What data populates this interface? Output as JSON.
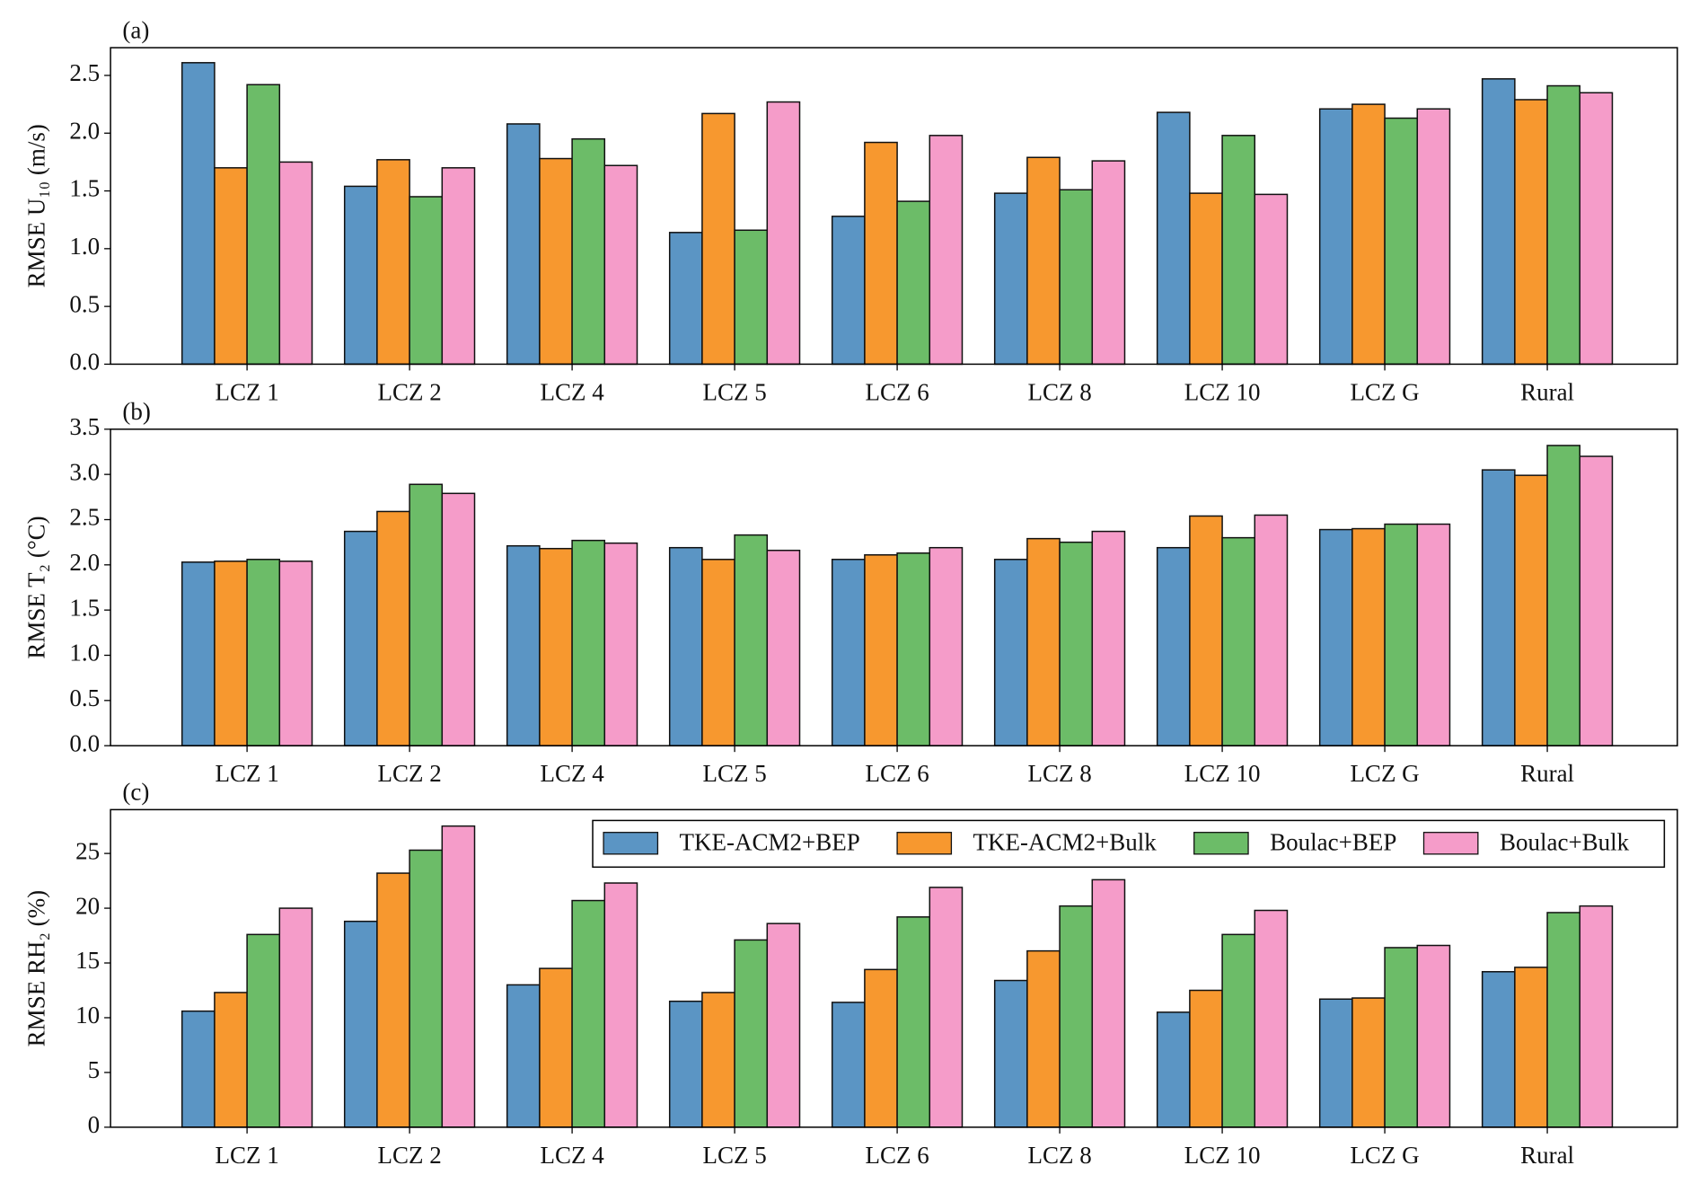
{
  "chart_data": [
    {
      "type": "bar",
      "label": "(a)",
      "ylabel": "RMSE U₁₀ (m/s)",
      "categories": [
        "LCZ 1",
        "LCZ 2",
        "LCZ 4",
        "LCZ 5",
        "LCZ 6",
        "LCZ 8",
        "LCZ 10",
        "LCZ G",
        "Rural"
      ],
      "series": [
        {
          "color": "#5b95c4",
          "values": [
            2.61,
            1.54,
            2.08,
            1.14,
            1.28,
            1.48,
            2.18,
            2.21,
            2.47
          ]
        },
        {
          "color": "#f7982f",
          "values": [
            1.7,
            1.77,
            1.78,
            2.17,
            1.92,
            1.79,
            1.48,
            2.25,
            2.29
          ]
        },
        {
          "color": "#6cbc68",
          "values": [
            2.42,
            1.45,
            1.95,
            1.16,
            1.41,
            1.51,
            1.98,
            2.13,
            2.41
          ]
        },
        {
          "color": "#f59cc9",
          "values": [
            1.75,
            1.7,
            1.72,
            2.27,
            1.98,
            1.76,
            1.47,
            2.21,
            2.35
          ]
        }
      ],
      "ylim": [
        0,
        2.74
      ],
      "yticks": [
        {
          "value": 0,
          "label": "0.0"
        },
        0.5,
        {
          "value": 1,
          "label": "1.0"
        },
        1.5,
        {
          "value": 2,
          "label": "2.0"
        },
        2.5
      ]
    },
    {
      "type": "bar",
      "label": "(b)",
      "ylabel": "RMSE T₂ (°C)",
      "categories": [
        "LCZ 1",
        "LCZ 2",
        "LCZ 4",
        "LCZ 5",
        "LCZ 6",
        "LCZ 8",
        "LCZ 10",
        "LCZ G",
        "Rural"
      ],
      "series": [
        {
          "color": "#5b95c4",
          "values": [
            2.03,
            2.37,
            2.21,
            2.19,
            2.06,
            2.06,
            2.19,
            2.39,
            3.05
          ]
        },
        {
          "color": "#f7982f",
          "values": [
            2.04,
            2.59,
            2.18,
            2.06,
            2.11,
            2.29,
            2.54,
            2.4,
            2.99
          ]
        },
        {
          "color": "#6cbc68",
          "values": [
            2.06,
            2.89,
            2.27,
            2.33,
            2.13,
            2.25,
            2.3,
            2.45,
            3.32
          ]
        },
        {
          "color": "#f59cc9",
          "values": [
            2.04,
            2.79,
            2.24,
            2.16,
            2.19,
            2.37,
            2.55,
            2.45,
            3.2
          ]
        }
      ],
      "ylim": [
        0,
        3.5
      ],
      "yticks": [
        {
          "value": 0,
          "label": "0.0"
        },
        0.5,
        {
          "value": 1,
          "label": "1.0"
        },
        1.5,
        {
          "value": 2,
          "label": "2.0"
        },
        2.5,
        {
          "value": 3,
          "label": "3.0"
        },
        3.5
      ]
    },
    {
      "type": "bar",
      "label": "(c)",
      "ylabel": "RMSE RH₂ (%)",
      "legend": "upper right",
      "categories": [
        "LCZ 1",
        "LCZ 2",
        "LCZ 4",
        "LCZ 5",
        "LCZ 6",
        "LCZ 8",
        "LCZ 10",
        "LCZ G",
        "Rural"
      ],
      "series": [
        {
          "name": "TKE-ACM2+BEP",
          "color": "#5b95c4",
          "values": [
            10.6,
            18.8,
            13.0,
            11.5,
            11.4,
            13.4,
            10.5,
            11.7,
            14.2
          ]
        },
        {
          "name": "TKE-ACM2+Bulk",
          "color": "#f7982f",
          "values": [
            12.3,
            23.2,
            14.5,
            12.3,
            14.4,
            16.1,
            12.5,
            11.8,
            14.6
          ]
        },
        {
          "name": "Boulac+BEP",
          "color": "#6cbc68",
          "values": [
            17.6,
            25.3,
            20.7,
            17.1,
            19.2,
            20.2,
            17.6,
            16.4,
            19.6
          ]
        },
        {
          "name": "Boulac+Bulk",
          "color": "#f59cc9",
          "values": [
            20.0,
            27.5,
            22.3,
            18.6,
            21.9,
            22.6,
            19.8,
            16.6,
            20.2
          ]
        }
      ],
      "ylim": [
        0,
        29
      ],
      "yticks": [
        0,
        5,
        10,
        15,
        20,
        25
      ]
    }
  ]
}
